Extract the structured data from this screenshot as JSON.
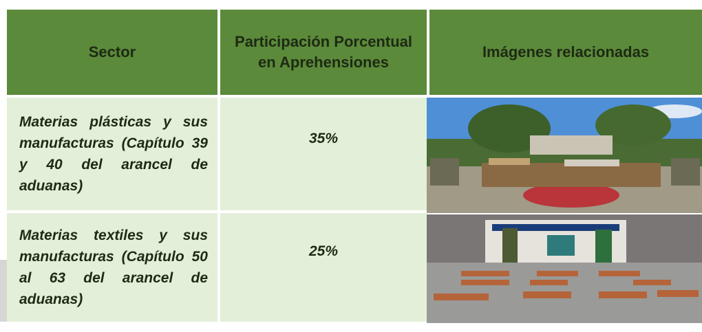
{
  "table": {
    "header": [
      "Sector",
      "Participación Porcentual en Aprehensiones",
      "Imágenes relacionadas"
    ],
    "rows": [
      [
        "Materias plásticas y sus manufacturas (Capítulo 39 y 40 del arancel de aduanas)",
        "35%"
      ],
      [
        "Materias textiles y sus manufacturas (Capítulo 50 al 63 del arancel de aduanas)",
        "25%"
      ]
    ]
  }
}
